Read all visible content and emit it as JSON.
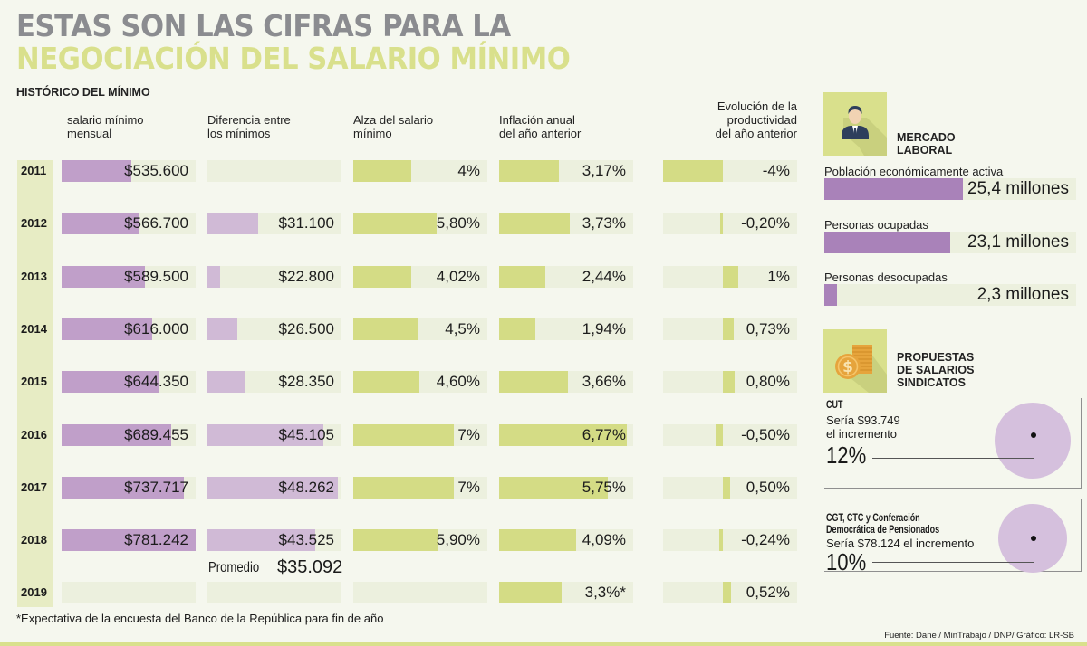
{
  "title": {
    "line1": "ESTAS SON LAS CIFRAS PARA LA",
    "line2": "NEGOCIACIÓN DEL SALARIO MÍNIMO"
  },
  "subtitle": "HISTÓRICO DEL MÍNIMO",
  "columns": [
    {
      "line1": "salario mínimo",
      "line2": "mensual"
    },
    {
      "line1": "Diferencia entre",
      "line2": "los mínimos"
    },
    {
      "line1": "Alza del salario",
      "line2": "mínimo"
    },
    {
      "line1": "Inflación anual",
      "line2": "del año anterior"
    },
    {
      "line1": "Evolución de la",
      "line2": "productividad",
      "line3": "del año anterior"
    }
  ],
  "colors": {
    "salario": "#c09fc9",
    "diferencia": "#d0bad6",
    "green": "#d4dc85",
    "track": "#ecf0de",
    "title_gray": "#8b8c90",
    "title_green": "#d9e08c"
  },
  "chart_data": {
    "type": "table",
    "title": "ESTAS SON LAS CIFRAS PARA LA NEGOCIACIÓN DEL SALARIO MÍNIMO",
    "subtitle": "HISTÓRICO DEL MÍNIMO",
    "categories": [
      "2011",
      "2012",
      "2013",
      "2014",
      "2015",
      "2016",
      "2017",
      "2018",
      "2019"
    ],
    "series": [
      {
        "name": "salario mínimo mensual",
        "values": [
          535600,
          566700,
          589500,
          616000,
          644350,
          689455,
          737717,
          781242,
          null
        ],
        "labels": [
          "$535.600",
          "$566.700",
          "$589.500",
          "$616.000",
          "$644.350",
          "$689.455",
          "$737.717",
          "$781.242",
          ""
        ]
      },
      {
        "name": "Diferencia entre los mínimos",
        "values": [
          null,
          31100,
          22800,
          26500,
          28350,
          45105,
          48262,
          43525,
          null
        ],
        "labels": [
          "",
          "$31.100",
          "$22.800",
          "$26.500",
          "$28.350",
          "$45.105",
          "$48.262",
          "$43.525",
          ""
        ]
      },
      {
        "name": "Alza del salario mínimo",
        "values": [
          4,
          5.8,
          4.02,
          4.5,
          4.6,
          7,
          7,
          5.9,
          null
        ],
        "labels": [
          "4%",
          "5,80%",
          "4,02%",
          "4,5%",
          "4,60%",
          "7%",
          "7%",
          "5,90%",
          ""
        ]
      },
      {
        "name": "Inflación anual del año anterior",
        "values": [
          3.17,
          3.73,
          2.44,
          1.94,
          3.66,
          6.77,
          5.75,
          4.09,
          3.3
        ],
        "labels": [
          "3,17%",
          "3,73%",
          "2,44%",
          "1,94%",
          "3,66%",
          "6,77%",
          "5,75%",
          "4,09%",
          "3,3%*"
        ]
      },
      {
        "name": "Evolución de la productividad del año anterior",
        "values": [
          -4,
          -0.2,
          1,
          0.73,
          0.8,
          -0.5,
          0.5,
          -0.24,
          0.52
        ],
        "labels": [
          "-4%",
          "-0,20%",
          "1%",
          "0,73%",
          "0,80%",
          "-0,50%",
          "0,50%",
          "-0,24%",
          "0,52%"
        ]
      }
    ],
    "promedio": {
      "label": "Promedio",
      "value": "$35.092"
    }
  },
  "mercado_laboral": {
    "title_line1": "MERCADO",
    "title_line2": "LABORAL",
    "icon": "businessman-icon",
    "items": [
      {
        "label": "Población económicamente activa",
        "value": "25,4 millones",
        "number": 25.4
      },
      {
        "label": "Personas ocupadas",
        "value": "23,1 millones",
        "number": 23.1
      },
      {
        "label": "Personas desocupadas",
        "value": "2,3 millones",
        "number": 2.3
      }
    ]
  },
  "propuestas": {
    "title_line1": "PROPUESTAS",
    "title_line2": "DE SALARIOS",
    "title_line3": "SINDICATOS",
    "icon": "coins-dollar-icon",
    "items": [
      {
        "name_line1": "CUT",
        "detail_line1": "Sería $93.749",
        "detail_line2": "el incremento",
        "pct": "12%"
      },
      {
        "name_line1": "CGT, CTC y Conferación",
        "name_line2": "Democrática de Pensionados",
        "detail_line1": "Sería $78.124 el incremento",
        "pct": "10%"
      }
    ]
  },
  "footnote": "*Expectativa de la encuesta del Banco de la República para fin de año",
  "source": "Fuente: Dane /  MinTrabajo / DNP/ Gráfico: LR-SB"
}
